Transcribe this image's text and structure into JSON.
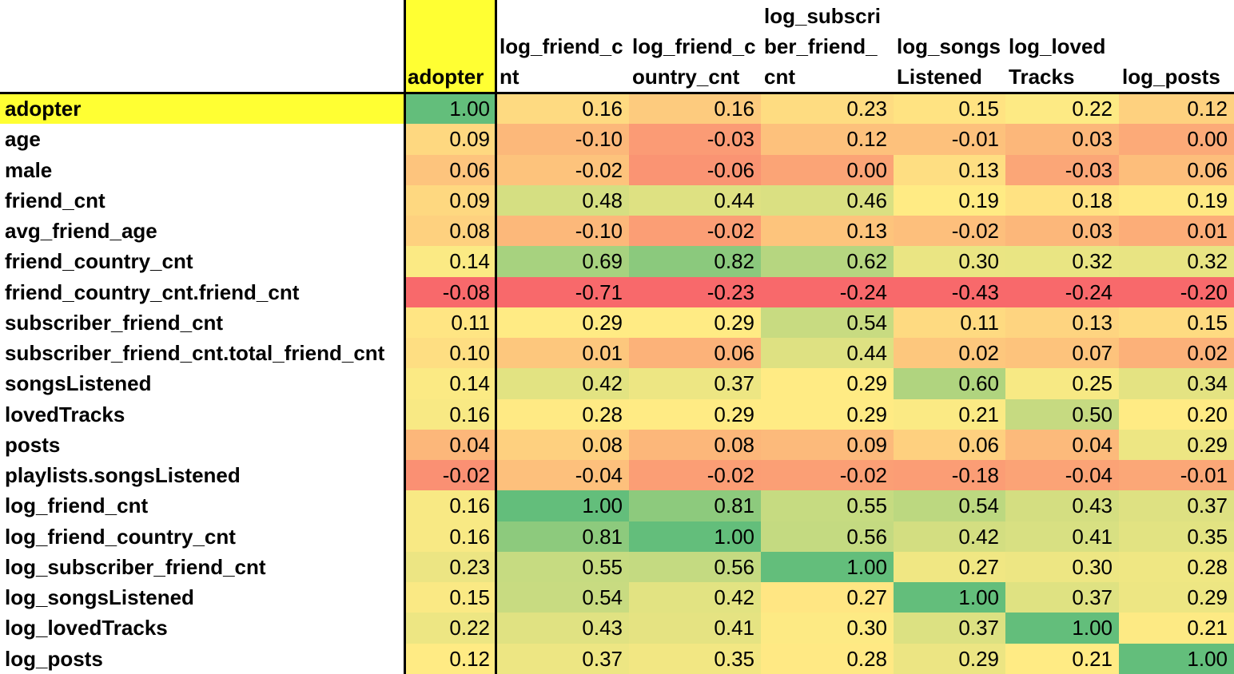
{
  "table": {
    "headers": [
      [
        "adopter"
      ],
      [
        "log_friend_c",
        "nt"
      ],
      [
        "log_friend_c",
        "ountry_cnt"
      ],
      [
        "log_subscri",
        "ber_friend_",
        "cnt"
      ],
      [
        "log_songs",
        "Listened"
      ],
      [
        "log_loved",
        "Tracks"
      ],
      [
        "log_posts"
      ]
    ],
    "rows": [
      {
        "label": "adopter",
        "values": [
          "1.00",
          "0.16",
          "0.16",
          "0.23",
          "0.15",
          "0.22",
          "0.12"
        ]
      },
      {
        "label": "age",
        "values": [
          "0.09",
          "-0.10",
          "-0.03",
          "0.12",
          "-0.01",
          "0.03",
          "0.00"
        ]
      },
      {
        "label": "male",
        "values": [
          "0.06",
          "-0.02",
          "-0.06",
          "0.00",
          "0.13",
          "-0.03",
          "0.06"
        ]
      },
      {
        "label": "friend_cnt",
        "values": [
          "0.09",
          "0.48",
          "0.44",
          "0.46",
          "0.19",
          "0.18",
          "0.19"
        ]
      },
      {
        "label": "avg_friend_age",
        "values": [
          "0.08",
          "-0.10",
          "-0.02",
          "0.13",
          "-0.02",
          "0.03",
          "0.01"
        ]
      },
      {
        "label": "friend_country_cnt",
        "values": [
          "0.14",
          "0.69",
          "0.82",
          "0.62",
          "0.30",
          "0.32",
          "0.32"
        ]
      },
      {
        "label": "friend_country_cnt.friend_cnt",
        "values": [
          "-0.08",
          "-0.71",
          "-0.23",
          "-0.24",
          "-0.43",
          "-0.24",
          "-0.20"
        ]
      },
      {
        "label": "subscriber_friend_cnt",
        "values": [
          "0.11",
          "0.29",
          "0.29",
          "0.54",
          "0.11",
          "0.13",
          "0.15"
        ]
      },
      {
        "label": "subscriber_friend_cnt.total_friend_cnt",
        "values": [
          "0.10",
          "0.01",
          "0.06",
          "0.44",
          "0.02",
          "0.07",
          "0.02"
        ]
      },
      {
        "label": "songsListened",
        "values": [
          "0.14",
          "0.42",
          "0.37",
          "0.29",
          "0.60",
          "0.25",
          "0.34"
        ]
      },
      {
        "label": "lovedTracks",
        "values": [
          "0.16",
          "0.28",
          "0.29",
          "0.29",
          "0.21",
          "0.50",
          "0.20"
        ]
      },
      {
        "label": "posts",
        "values": [
          "0.04",
          "0.08",
          "0.08",
          "0.09",
          "0.06",
          "0.04",
          "0.29"
        ]
      },
      {
        "label": "playlists.songsListened",
        "values": [
          "-0.02",
          "-0.04",
          "-0.02",
          "-0.02",
          "-0.18",
          "-0.04",
          "-0.01"
        ]
      },
      {
        "label": "log_friend_cnt",
        "values": [
          "0.16",
          "1.00",
          "0.81",
          "0.55",
          "0.54",
          "0.43",
          "0.37"
        ]
      },
      {
        "label": "log_friend_country_cnt",
        "values": [
          "0.16",
          "0.81",
          "1.00",
          "0.56",
          "0.42",
          "0.41",
          "0.35"
        ]
      },
      {
        "label": "log_subscriber_friend_cnt",
        "values": [
          "0.23",
          "0.55",
          "0.56",
          "1.00",
          "0.27",
          "0.30",
          "0.28"
        ]
      },
      {
        "label": "log_songsListened",
        "values": [
          "0.15",
          "0.54",
          "0.42",
          "0.27",
          "1.00",
          "0.37",
          "0.29"
        ]
      },
      {
        "label": "log_lovedTracks",
        "values": [
          "0.22",
          "0.43",
          "0.41",
          "0.30",
          "0.37",
          "1.00",
          "0.21"
        ]
      },
      {
        "label": "log_posts",
        "values": [
          "0.12",
          "0.37",
          "0.35",
          "0.28",
          "0.29",
          "0.21",
          "1.00"
        ]
      }
    ]
  },
  "colors": {
    "highlight": "#ffff33",
    "scale_low": "#f8696b",
    "scale_mid": "#ffeb84",
    "scale_high": "#63be7b"
  }
}
